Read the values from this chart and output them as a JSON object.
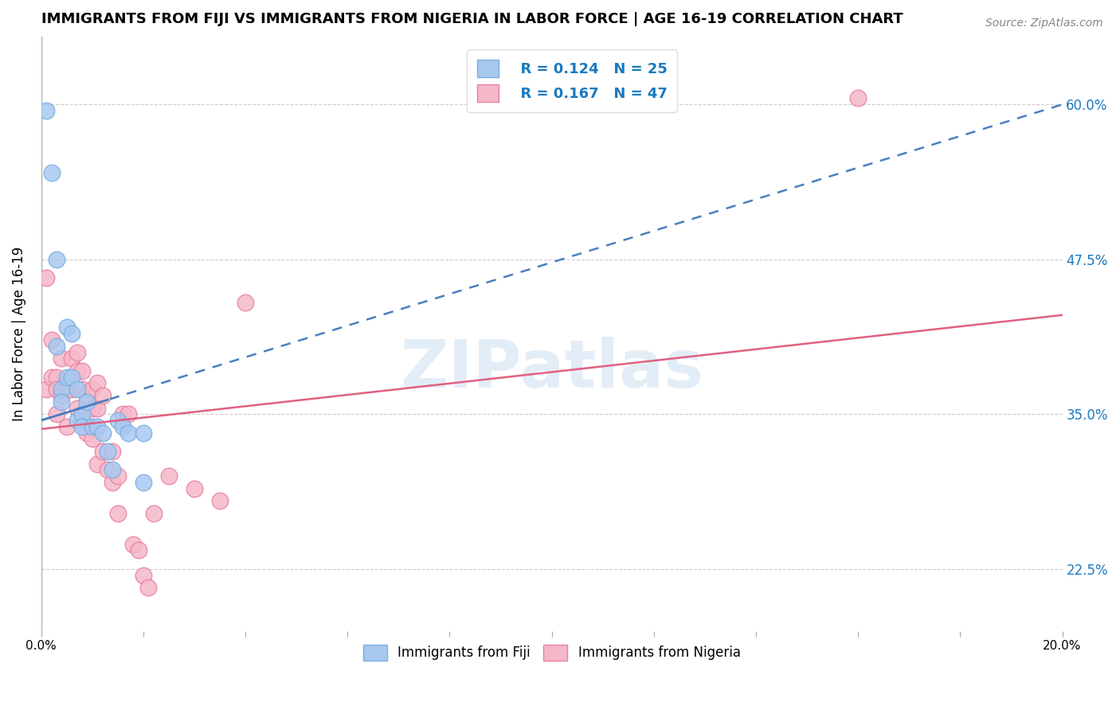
{
  "title": "IMMIGRANTS FROM FIJI VS IMMIGRANTS FROM NIGERIA IN LABOR FORCE | AGE 16-19 CORRELATION CHART",
  "source": "Source: ZipAtlas.com",
  "xlabel": "",
  "ylabel": "In Labor Force | Age 16-19",
  "xlim": [
    0.0,
    0.2
  ],
  "ylim": [
    0.175,
    0.655
  ],
  "xticks": [
    0.0,
    0.02,
    0.04,
    0.06,
    0.08,
    0.1,
    0.12,
    0.14,
    0.16,
    0.18,
    0.2
  ],
  "xticklabels": [
    "0.0%",
    "",
    "",
    "",
    "",
    "",
    "",
    "",
    "",
    "",
    "20.0%"
  ],
  "ytick_positions": [
    0.225,
    0.35,
    0.475,
    0.6
  ],
  "ytick_labels": [
    "22.5%",
    "35.0%",
    "47.5%",
    "60.0%"
  ],
  "fiji_color": "#a8c8f0",
  "fiji_edge_color": "#7aaee0",
  "nigeria_color": "#f5b8c8",
  "nigeria_edge_color": "#e87fa0",
  "fiji_line_color": "#4a7fc0",
  "nigeria_line_color": "#e06080",
  "fiji_R": 0.124,
  "fiji_N": 25,
  "nigeria_R": 0.167,
  "nigeria_N": 47,
  "background_color": "#ffffff",
  "fiji_line_x0": 0.0,
  "fiji_line_y0": 0.345,
  "fiji_line_x1": 0.2,
  "fiji_line_y1": 0.6,
  "nigeria_line_x0": 0.0,
  "nigeria_line_y0": 0.338,
  "nigeria_line_x1": 0.2,
  "nigeria_line_y1": 0.43,
  "fiji_x": [
    0.001,
    0.002,
    0.003,
    0.003,
    0.004,
    0.004,
    0.005,
    0.005,
    0.006,
    0.006,
    0.007,
    0.007,
    0.008,
    0.008,
    0.009,
    0.01,
    0.011,
    0.012,
    0.013,
    0.014,
    0.015,
    0.016,
    0.017,
    0.02,
    0.02
  ],
  "fiji_y": [
    0.595,
    0.545,
    0.475,
    0.405,
    0.37,
    0.36,
    0.42,
    0.38,
    0.415,
    0.38,
    0.37,
    0.345,
    0.35,
    0.34,
    0.36,
    0.34,
    0.34,
    0.335,
    0.32,
    0.305,
    0.345,
    0.34,
    0.335,
    0.335,
    0.295
  ],
  "nigeria_x": [
    0.001,
    0.001,
    0.002,
    0.002,
    0.003,
    0.003,
    0.003,
    0.004,
    0.004,
    0.005,
    0.005,
    0.005,
    0.006,
    0.006,
    0.007,
    0.007,
    0.007,
    0.008,
    0.008,
    0.008,
    0.009,
    0.009,
    0.01,
    0.01,
    0.01,
    0.011,
    0.011,
    0.011,
    0.012,
    0.012,
    0.013,
    0.014,
    0.014,
    0.015,
    0.015,
    0.016,
    0.017,
    0.018,
    0.019,
    0.02,
    0.021,
    0.022,
    0.025,
    0.03,
    0.035,
    0.04,
    0.16
  ],
  "nigeria_y": [
    0.46,
    0.37,
    0.41,
    0.38,
    0.38,
    0.37,
    0.35,
    0.395,
    0.365,
    0.375,
    0.37,
    0.34,
    0.395,
    0.37,
    0.4,
    0.385,
    0.355,
    0.385,
    0.37,
    0.345,
    0.365,
    0.335,
    0.37,
    0.355,
    0.33,
    0.375,
    0.355,
    0.31,
    0.365,
    0.32,
    0.305,
    0.32,
    0.295,
    0.3,
    0.27,
    0.35,
    0.35,
    0.245,
    0.24,
    0.22,
    0.21,
    0.27,
    0.3,
    0.29,
    0.28,
    0.44,
    0.605
  ]
}
